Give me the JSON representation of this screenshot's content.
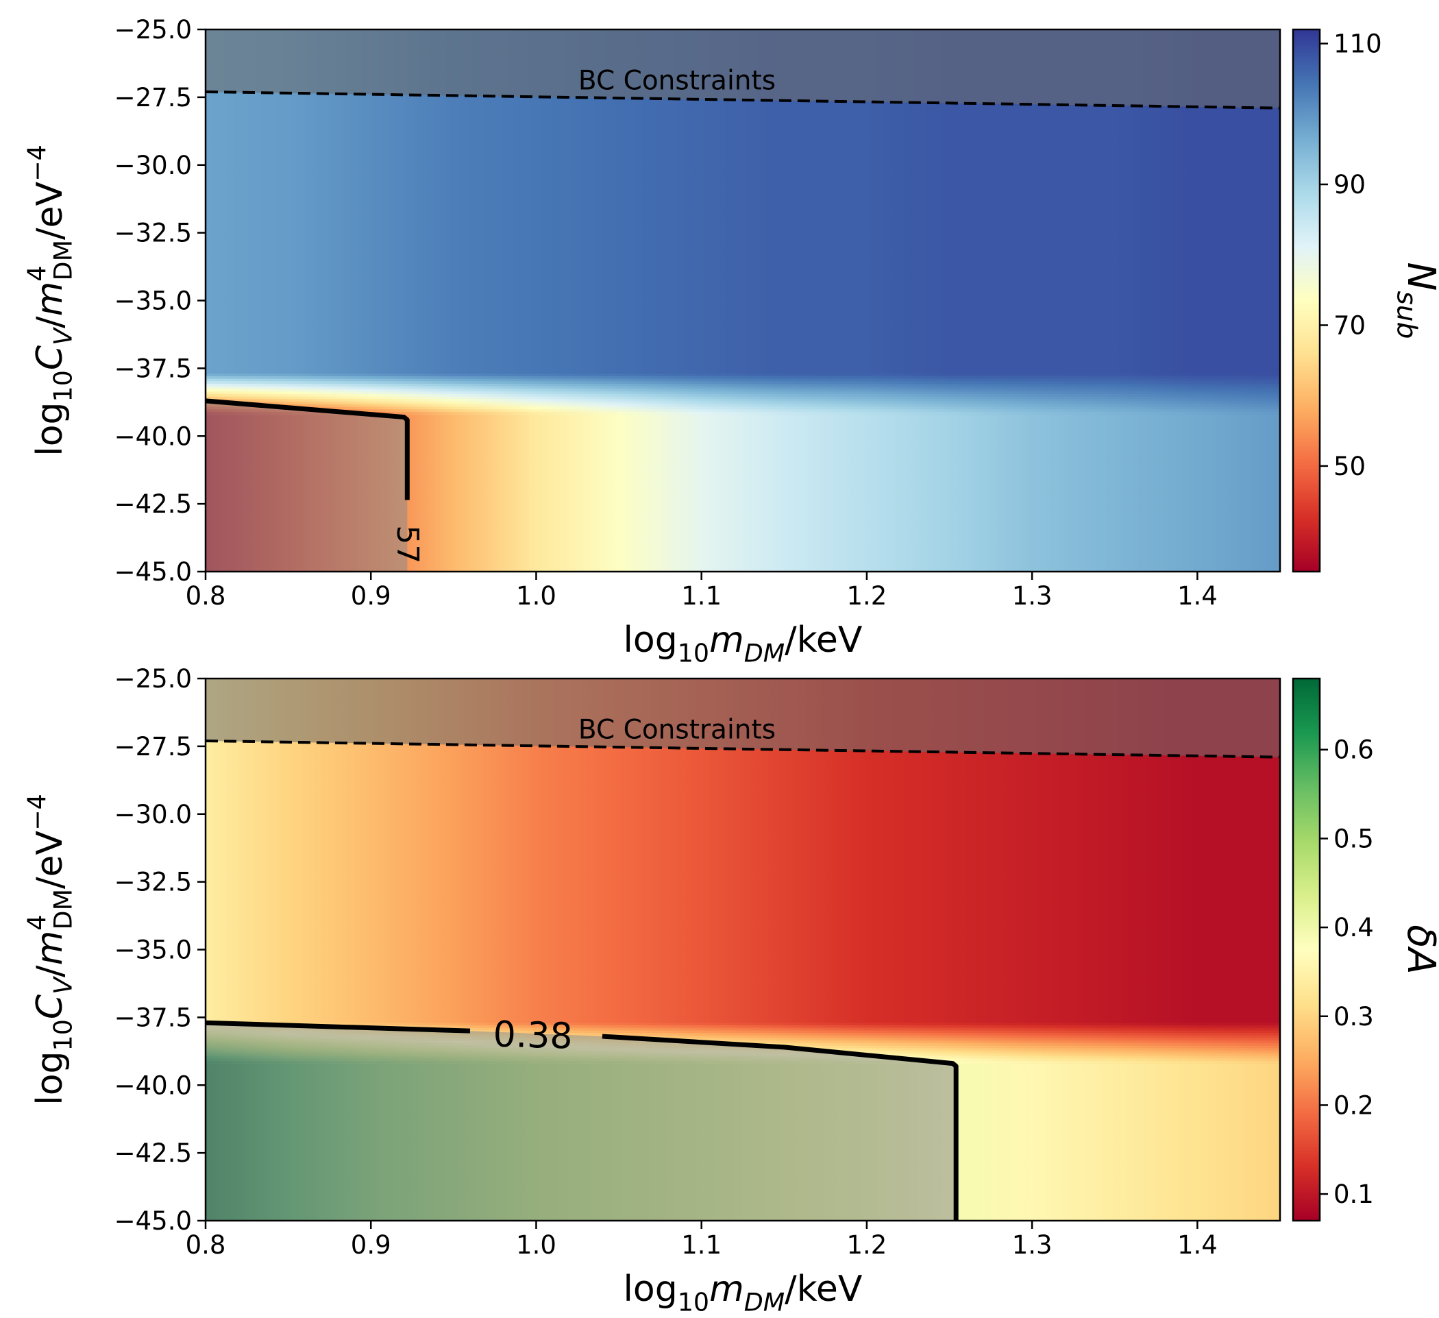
{
  "chart_data": [
    {
      "type": "heatmap",
      "panel": "top",
      "xlabel": {
        "prefix": "log",
        "sub": "10",
        "var": "m",
        "varsub": "DM",
        "suffix": "/keV"
      },
      "ylabel": {
        "prefix": "log",
        "sub": "10",
        "var": "C",
        "varsub": "V",
        "mid": "/",
        "var2": "m",
        "var2sub": "DM",
        "var2sup": "4",
        "suffix": "/eV",
        "suffixsup": "−4"
      },
      "xlim": [
        0.8,
        1.45
      ],
      "ylim": [
        -45.0,
        -25.0
      ],
      "x_ticks": [
        0.8,
        0.9,
        1.0,
        1.1,
        1.2,
        1.3,
        1.4
      ],
      "x_tick_labels": [
        "0.8",
        "0.9",
        "1.0",
        "1.1",
        "1.2",
        "1.3",
        "1.4"
      ],
      "y_ticks": [
        -25.0,
        -27.5,
        -30.0,
        -32.5,
        -35.0,
        -37.5,
        -40.0,
        -42.5,
        -45.0
      ],
      "y_tick_labels": [
        "−25.0",
        "−27.5",
        "−30.0",
        "−32.5",
        "−35.0",
        "−37.5",
        "−40.0",
        "−42.5",
        "−45.0"
      ],
      "colormap": "RdYlBu",
      "colorbar": {
        "label": {
          "var": "N",
          "sub": "sub"
        },
        "range": [
          35,
          112
        ],
        "ticks": [
          50,
          70,
          90,
          110
        ],
        "tick_labels": [
          "50",
          "70",
          "90",
          "110"
        ]
      },
      "transition_band_y": [
        -39.2,
        -37.7
      ],
      "grid_x": [
        0.8,
        0.85,
        0.9,
        0.95,
        1.0,
        1.05,
        1.1,
        1.15,
        1.2,
        1.25,
        1.3,
        1.35,
        1.4,
        1.45
      ],
      "row_below_transition": [
        38,
        45,
        52,
        60,
        68,
        74,
        80,
        84,
        87,
        90,
        93,
        95,
        97,
        99
      ],
      "row_above_transition": [
        98,
        99,
        101,
        103,
        104,
        105,
        106,
        107,
        107,
        108,
        108,
        108,
        109,
        109
      ],
      "bc_constraint": {
        "label": "BC Constraints",
        "x": [
          0.8,
          1.45
        ],
        "y": [
          -27.3,
          -27.9
        ]
      },
      "contour": {
        "label": "57",
        "x": [
          0.8,
          0.92,
          0.922,
          0.922
        ],
        "y": [
          -38.7,
          -39.3,
          -39.4,
          -45.0
        ],
        "label_at": [
          0.921,
          -44.0
        ]
      },
      "shaded_regions": [
        "above BC Constraints",
        "inside contour 57"
      ]
    },
    {
      "type": "heatmap",
      "panel": "bottom",
      "xlabel": {
        "prefix": "log",
        "sub": "10",
        "var": "m",
        "varsub": "DM",
        "suffix": "/keV"
      },
      "ylabel": {
        "prefix": "log",
        "sub": "10",
        "var": "C",
        "varsub": "V",
        "mid": "/",
        "var2": "m",
        "var2sub": "DM",
        "var2sup": "4",
        "suffix": "/eV",
        "suffixsup": "−4"
      },
      "xlim": [
        0.8,
        1.45
      ],
      "ylim": [
        -45.0,
        -25.0
      ],
      "x_ticks": [
        0.8,
        0.9,
        1.0,
        1.1,
        1.2,
        1.3,
        1.4
      ],
      "x_tick_labels": [
        "0.8",
        "0.9",
        "1.0",
        "1.1",
        "1.2",
        "1.3",
        "1.4"
      ],
      "y_ticks": [
        -25.0,
        -27.5,
        -30.0,
        -32.5,
        -35.0,
        -37.5,
        -40.0,
        -42.5,
        -45.0
      ],
      "y_tick_labels": [
        "−25.0",
        "−27.5",
        "−30.0",
        "−32.5",
        "−35.0",
        "−37.5",
        "−40.0",
        "−42.5",
        "−45.0"
      ],
      "colormap": "RdYlGn",
      "colorbar": {
        "label": {
          "var": "δA"
        },
        "range": [
          0.07,
          0.68
        ],
        "ticks": [
          0.1,
          0.2,
          0.3,
          0.4,
          0.5,
          0.6
        ],
        "tick_labels": [
          "0.1",
          "0.2",
          "0.3",
          "0.4",
          "0.5",
          "0.6"
        ]
      },
      "transition_band_y": [
        -39.2,
        -37.7
      ],
      "grid_x": [
        0.8,
        0.85,
        0.9,
        0.95,
        1.0,
        1.05,
        1.1,
        1.15,
        1.2,
        1.25,
        1.3,
        1.35,
        1.4,
        1.45
      ],
      "row_below_transition": [
        0.66,
        0.6,
        0.56,
        0.53,
        0.5,
        0.48,
        0.46,
        0.44,
        0.42,
        0.39,
        0.36,
        0.34,
        0.32,
        0.3
      ],
      "row_above_transition": [
        0.34,
        0.3,
        0.27,
        0.24,
        0.21,
        0.19,
        0.17,
        0.15,
        0.13,
        0.12,
        0.11,
        0.1,
        0.09,
        0.09
      ],
      "bc_constraint": {
        "label": "BC Constraints",
        "x": [
          0.8,
          1.45
        ],
        "y": [
          -27.3,
          -27.9
        ]
      },
      "contour": {
        "label": "0.38",
        "x": [
          0.8,
          0.96,
          1.04,
          1.15,
          1.252,
          1.254,
          1.254
        ],
        "y": [
          -37.7,
          -38.0,
          -38.2,
          -38.6,
          -39.2,
          -39.3,
          -45.0
        ],
        "label_at": [
          0.998,
          -38.15
        ]
      },
      "shaded_regions": [
        "above BC Constraints",
        "inside contour 0.38"
      ]
    }
  ]
}
